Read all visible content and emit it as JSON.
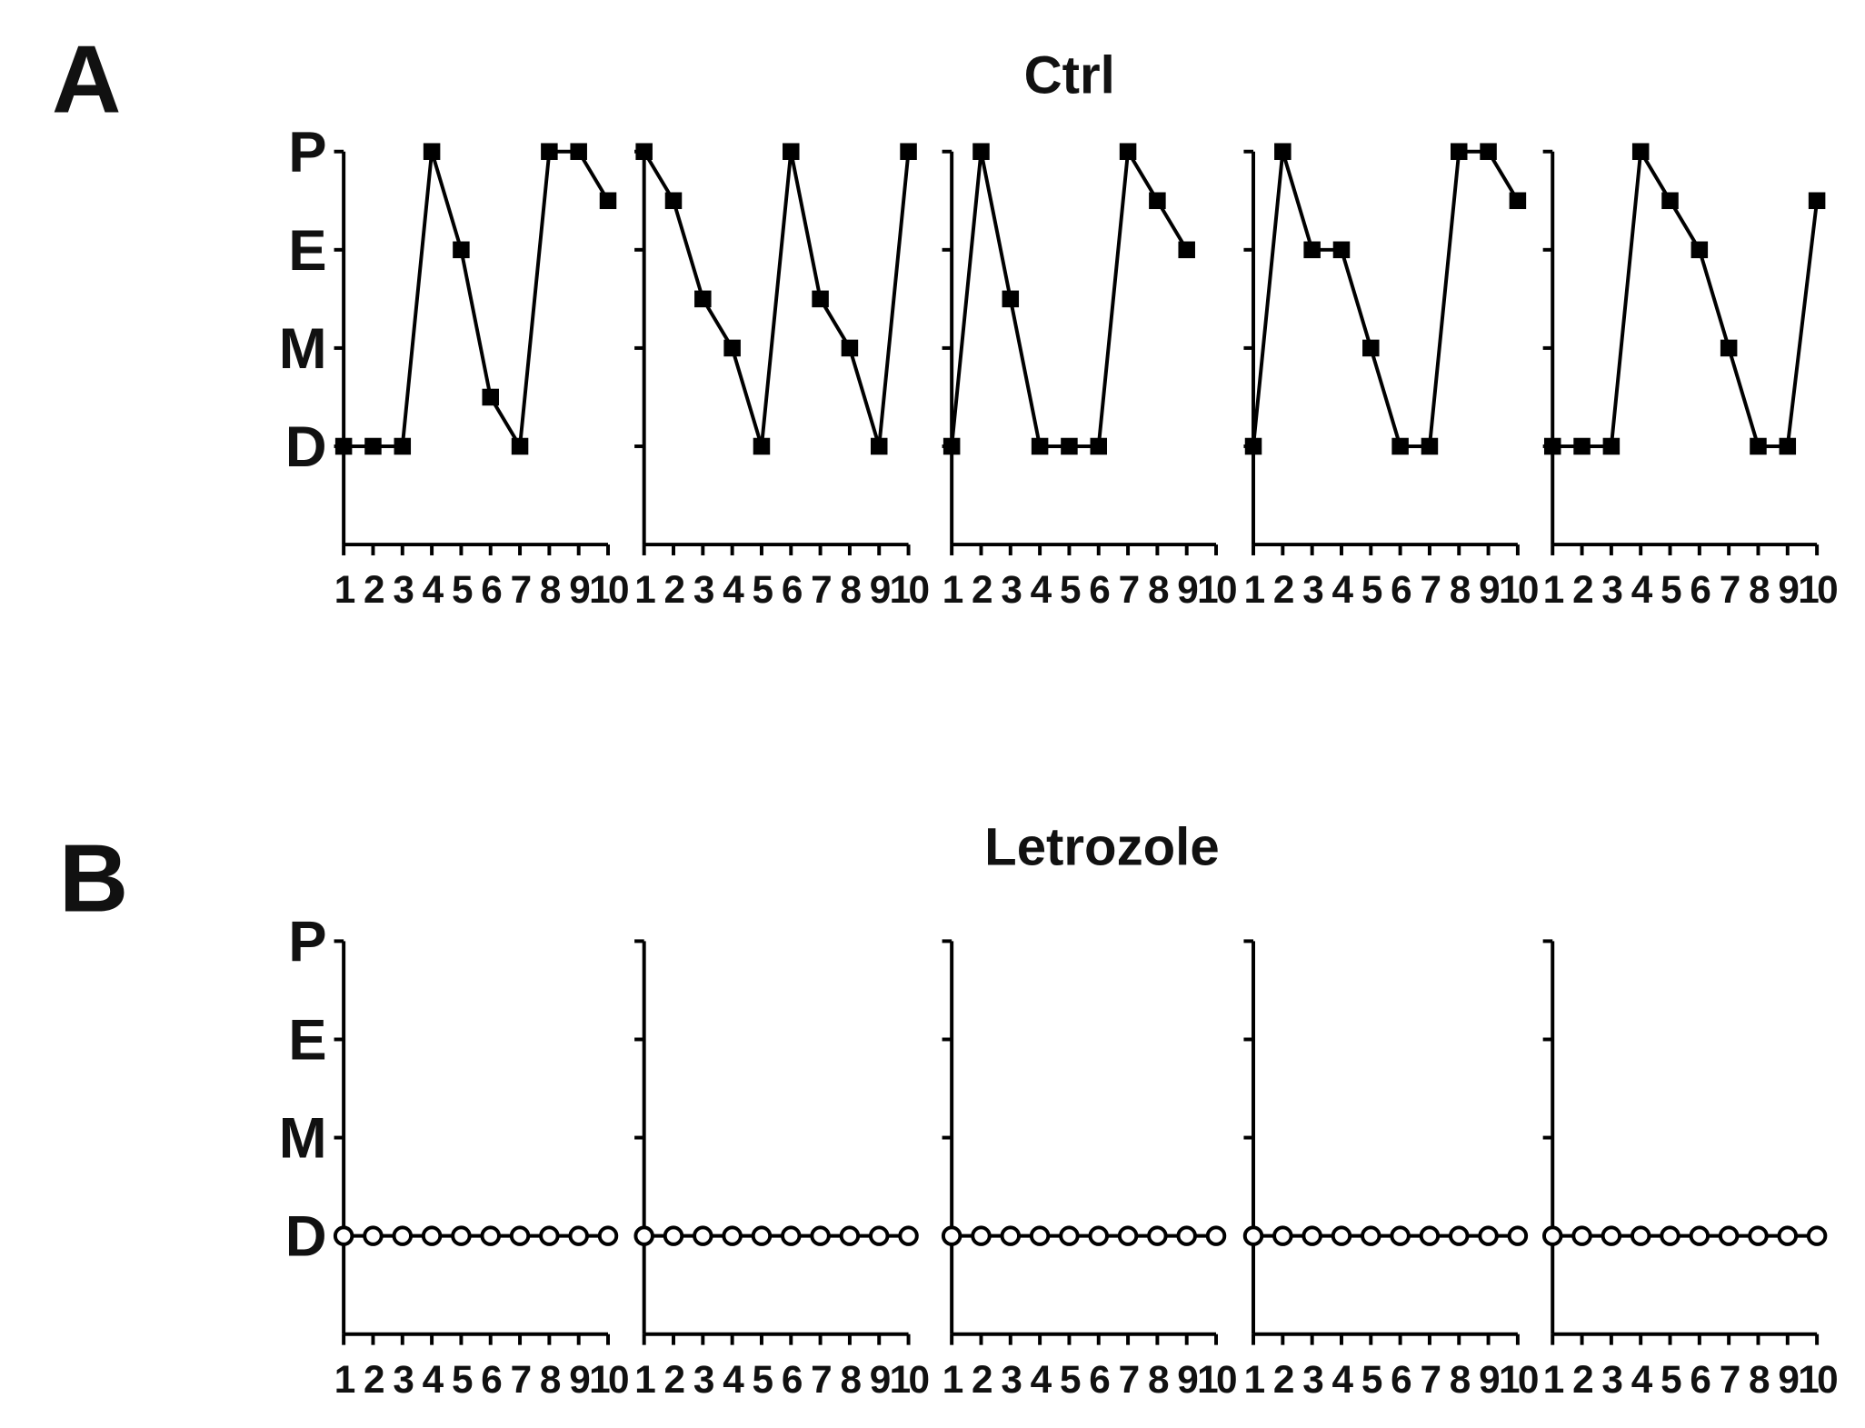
{
  "chart_data": [
    {
      "type": "line",
      "panel_label": "A",
      "title": "Ctrl",
      "x": [
        1,
        2,
        3,
        4,
        5,
        6,
        7,
        8,
        9,
        10
      ],
      "xlim": [
        1,
        10
      ],
      "xticks": [
        1,
        2,
        3,
        4,
        5,
        6,
        7,
        8,
        9,
        10
      ],
      "ylim": [
        0,
        4
      ],
      "yticks": [
        {
          "value": 1,
          "label": "D"
        },
        {
          "value": 2,
          "label": "M"
        },
        {
          "value": 3,
          "label": "E"
        },
        {
          "value": 4,
          "label": "P"
        }
      ],
      "series": [
        {
          "color": "#000000",
          "marker": "square",
          "values": [
            1,
            1,
            1,
            4,
            3,
            1.5,
            1,
            4,
            4,
            3.5
          ]
        }
      ]
    },
    {
      "type": "line",
      "x": [
        1,
        2,
        3,
        4,
        5,
        6,
        7,
        8,
        9,
        10
      ],
      "xlim": [
        1,
        10
      ],
      "xticks": [
        1,
        2,
        3,
        4,
        5,
        6,
        7,
        8,
        9,
        10
      ],
      "ylim": [
        0,
        4
      ],
      "yticks": [
        1,
        2,
        3,
        4
      ],
      "series": [
        {
          "color": "#000000",
          "marker": "square",
          "values": [
            4,
            3.5,
            2.5,
            2,
            1,
            4,
            2.5,
            2,
            1,
            4
          ]
        }
      ]
    },
    {
      "type": "line",
      "x": [
        1,
        2,
        3,
        4,
        5,
        6,
        7,
        8,
        9,
        10
      ],
      "xlim": [
        1,
        10
      ],
      "xticks": [
        1,
        2,
        3,
        4,
        5,
        6,
        7,
        8,
        9,
        10
      ],
      "ylim": [
        0,
        4
      ],
      "yticks": [
        1,
        2,
        3,
        4
      ],
      "series": [
        {
          "color": "#000000",
          "marker": "square",
          "values": [
            1,
            4,
            2.5,
            1,
            1,
            1,
            4,
            3.5,
            3,
            null
          ]
        }
      ]
    },
    {
      "type": "line",
      "x": [
        1,
        2,
        3,
        4,
        5,
        6,
        7,
        8,
        9,
        10
      ],
      "xlim": [
        1,
        10
      ],
      "xticks": [
        1,
        2,
        3,
        4,
        5,
        6,
        7,
        8,
        9,
        10
      ],
      "ylim": [
        0,
        4
      ],
      "yticks": [
        1,
        2,
        3,
        4
      ],
      "series": [
        {
          "color": "#000000",
          "marker": "square",
          "values": [
            1,
            4,
            3,
            3,
            2,
            1,
            1,
            4,
            4,
            3.5
          ]
        }
      ]
    },
    {
      "type": "line",
      "x": [
        1,
        2,
        3,
        4,
        5,
        6,
        7,
        8,
        9,
        10
      ],
      "xlim": [
        1,
        10
      ],
      "xticks": [
        1,
        2,
        3,
        4,
        5,
        6,
        7,
        8,
        9,
        10
      ],
      "ylim": [
        0,
        4
      ],
      "yticks": [
        1,
        2,
        3,
        4
      ],
      "series": [
        {
          "color": "#000000",
          "marker": "square",
          "values": [
            1,
            1,
            1,
            4,
            3.5,
            3,
            2,
            1,
            1,
            3.5
          ]
        }
      ]
    },
    {
      "type": "line",
      "panel_label": "B",
      "title": "Letrozole",
      "x": [
        1,
        2,
        3,
        4,
        5,
        6,
        7,
        8,
        9,
        10
      ],
      "xlim": [
        1,
        10
      ],
      "xticks": [
        1,
        2,
        3,
        4,
        5,
        6,
        7,
        8,
        9,
        10
      ],
      "ylim": [
        0,
        4
      ],
      "yticks": [
        {
          "value": 1,
          "label": "D"
        },
        {
          "value": 2,
          "label": "M"
        },
        {
          "value": 3,
          "label": "E"
        },
        {
          "value": 4,
          "label": "P"
        }
      ],
      "series": [
        {
          "color": "#000000",
          "marker": "circle-open",
          "values": [
            1,
            1,
            1,
            1,
            1,
            1,
            1,
            1,
            1,
            1
          ]
        }
      ]
    },
    {
      "type": "line",
      "x": [
        1,
        2,
        3,
        4,
        5,
        6,
        7,
        8,
        9,
        10
      ],
      "xlim": [
        1,
        10
      ],
      "xticks": [
        1,
        2,
        3,
        4,
        5,
        6,
        7,
        8,
        9,
        10
      ],
      "ylim": [
        0,
        4
      ],
      "yticks": [
        1,
        2,
        3,
        4
      ],
      "series": [
        {
          "color": "#000000",
          "marker": "circle-open",
          "values": [
            1,
            1,
            1,
            1,
            1,
            1,
            1,
            1,
            1,
            1
          ]
        }
      ]
    },
    {
      "type": "line",
      "x": [
        1,
        2,
        3,
        4,
        5,
        6,
        7,
        8,
        9,
        10
      ],
      "xlim": [
        1,
        10
      ],
      "xticks": [
        1,
        2,
        3,
        4,
        5,
        6,
        7,
        8,
        9,
        10
      ],
      "ylim": [
        0,
        4
      ],
      "yticks": [
        1,
        2,
        3,
        4
      ],
      "series": [
        {
          "color": "#000000",
          "marker": "circle-open",
          "values": [
            1,
            1,
            1,
            1,
            1,
            1,
            1,
            1,
            1,
            1
          ]
        }
      ]
    },
    {
      "type": "line",
      "x": [
        1,
        2,
        3,
        4,
        5,
        6,
        7,
        8,
        9,
        10
      ],
      "xlim": [
        1,
        10
      ],
      "xticks": [
        1,
        2,
        3,
        4,
        5,
        6,
        7,
        8,
        9,
        10
      ],
      "ylim": [
        0,
        4
      ],
      "yticks": [
        1,
        2,
        3,
        4
      ],
      "series": [
        {
          "color": "#000000",
          "marker": "circle-open",
          "values": [
            1,
            1,
            1,
            1,
            1,
            1,
            1,
            1,
            1,
            1
          ]
        }
      ]
    },
    {
      "type": "line",
      "x": [
        1,
        2,
        3,
        4,
        5,
        6,
        7,
        8,
        9,
        10
      ],
      "xlim": [
        1,
        10
      ],
      "xticks": [
        1,
        2,
        3,
        4,
        5,
        6,
        7,
        8,
        9,
        10
      ],
      "ylim": [
        0,
        4
      ],
      "yticks": [
        1,
        2,
        3,
        4
      ],
      "series": [
        {
          "color": "#000000",
          "marker": "circle-open",
          "values": [
            1,
            1,
            1,
            1,
            1,
            1,
            1,
            1,
            1,
            1
          ]
        }
      ]
    }
  ]
}
